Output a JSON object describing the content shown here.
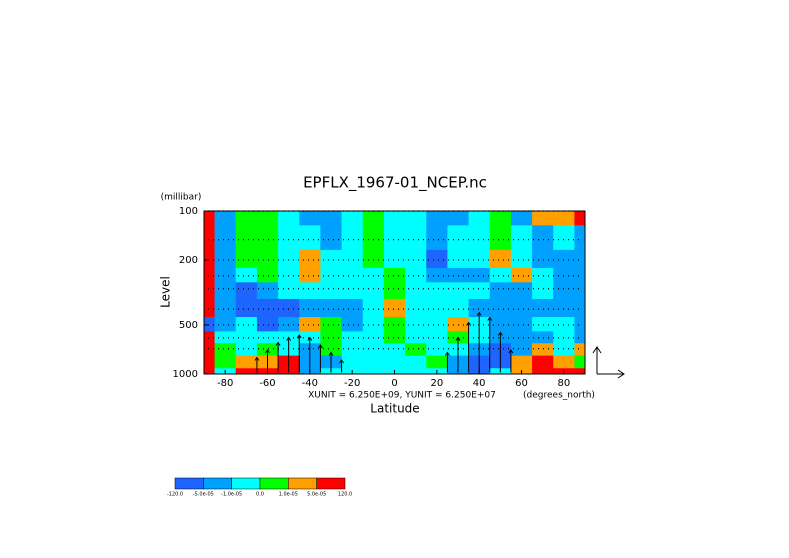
{
  "chart_data": {
    "type": "contour",
    "title": "EPFLX_1967-01_NCEP.nc",
    "xlabel": "Latitude",
    "xunits": "(degrees_north)",
    "ylabel": "Level",
    "yunits": "(millibar)",
    "note": "XUNIT = 6.250E+09, YUNIT = 6.250E+07",
    "xlim": [
      -90,
      90
    ],
    "xticks": [
      -80,
      -60,
      -40,
      -20,
      0,
      20,
      40,
      60,
      80
    ],
    "ylim": [
      1000,
      100
    ],
    "yticks": [
      100,
      200,
      500,
      1000
    ],
    "log_y": true,
    "field": {
      "lat": [
        -90,
        -80,
        -70,
        -60,
        -50,
        -40,
        -30,
        -20,
        -10,
        0,
        10,
        20,
        30,
        40,
        50,
        60,
        70,
        80,
        90
      ],
      "level": [
        100,
        150,
        200,
        250,
        300,
        400,
        500,
        600,
        700,
        850,
        1000
      ],
      "values": [
        [
          6e-05,
          -3e-05,
          5e-06,
          5e-06,
          -5e-06,
          -3e-05,
          -3e-05,
          -5e-06,
          5e-06,
          -5e-06,
          -5e-06,
          -3e-05,
          -3e-05,
          -5e-06,
          5e-06,
          -3e-05,
          3e-05,
          3e-05,
          6e-05
        ],
        [
          6e-05,
          -3e-05,
          5e-06,
          5e-06,
          -5e-06,
          -5e-06,
          -3e-05,
          -5e-06,
          5e-06,
          -5e-06,
          -5e-06,
          -3e-05,
          -5e-06,
          -5e-06,
          5e-06,
          -5e-06,
          -3e-05,
          -5e-06,
          -3e-05
        ],
        [
          6e-05,
          -3e-05,
          5e-06,
          5e-06,
          -5e-06,
          3e-05,
          -5e-06,
          -5e-06,
          5e-06,
          -5e-06,
          -5e-06,
          -6e-05,
          -5e-06,
          -5e-06,
          3e-05,
          -5e-06,
          -3e-05,
          -3e-05,
          -3e-05
        ],
        [
          6e-05,
          -3e-05,
          -5e-06,
          5e-06,
          -5e-06,
          3e-05,
          -5e-06,
          -5e-06,
          -5e-06,
          5e-06,
          -5e-06,
          -3e-05,
          -3e-05,
          -3e-05,
          -5e-06,
          3e-05,
          -5e-06,
          -3e-05,
          -3e-05
        ],
        [
          6e-05,
          -3e-05,
          -6e-05,
          -3e-05,
          -5e-06,
          -5e-06,
          -5e-06,
          -5e-06,
          -5e-06,
          5e-06,
          -5e-06,
          -5e-06,
          -5e-06,
          -5e-06,
          -3e-05,
          -3e-05,
          -5e-06,
          -3e-05,
          -3e-05
        ],
        [
          6e-05,
          -3e-05,
          -6e-05,
          -6e-05,
          -6e-05,
          -3e-05,
          -3e-05,
          -3e-05,
          -5e-06,
          3e-05,
          -5e-06,
          -5e-06,
          -5e-06,
          -3e-05,
          -3e-05,
          -3e-05,
          -3e-05,
          -3e-05,
          -3e-05
        ],
        [
          -6e-05,
          -3e-05,
          -5e-06,
          -6e-05,
          -3e-05,
          3e-05,
          5e-06,
          -3e-05,
          -5e-06,
          5e-06,
          -5e-06,
          -5e-06,
          3e-05,
          -5e-06,
          -3e-05,
          -3e-05,
          -5e-06,
          -5e-06,
          -3e-05
        ],
        [
          6e-05,
          -5e-06,
          -5e-06,
          -5e-06,
          -5e-06,
          -5e-06,
          5e-06,
          -5e-06,
          -5e-06,
          5e-06,
          -5e-06,
          -5e-06,
          5e-06,
          -5e-06,
          -3e-05,
          -3e-05,
          -3e-05,
          -5e-06,
          -3e-05
        ],
        [
          6e-05,
          5e-06,
          -5e-06,
          5e-06,
          -5e-06,
          -3e-05,
          5e-06,
          -5e-06,
          -5e-06,
          -5e-06,
          5e-06,
          -5e-06,
          -5e-06,
          -3e-05,
          -6e-05,
          -3e-05,
          3e-05,
          -5e-06,
          3e-05
        ],
        [
          6e-05,
          5e-06,
          3e-05,
          3e-05,
          6e-05,
          -3e-05,
          -3e-05,
          -5e-06,
          -5e-06,
          -5e-06,
          -5e-06,
          5e-06,
          -3e-05,
          -6e-05,
          -6e-05,
          3e-05,
          6e-05,
          3e-05,
          5e-06
        ],
        [
          6e-05,
          -5e-06,
          6e-05,
          6e-05,
          6e-05,
          -3e-05,
          -5e-06,
          -5e-06,
          -5e-06,
          -5e-06,
          -5e-06,
          -5e-06,
          -3e-05,
          -6e-05,
          -5e-06,
          3e-05,
          6e-05,
          6e-05,
          6e-05
        ]
      ]
    },
    "vectors": {
      "lat": [
        -65,
        -60,
        -55,
        -50,
        -45,
        -40,
        -35,
        -30,
        -25,
        25,
        30,
        35,
        40,
        45,
        50,
        55
      ],
      "level": [
        850,
        850,
        850,
        850,
        850,
        850,
        850,
        850,
        850,
        850,
        850,
        850,
        850,
        850,
        850,
        850
      ],
      "v": [
        0.6,
        0.9,
        1.2,
        1.4,
        1.5,
        1.4,
        1.1,
        0.8,
        0.5,
        0.8,
        1.4,
        2.0,
        2.4,
        2.2,
        1.6,
        0.9
      ]
    },
    "colorbar": {
      "levels": [
        {
          "value": -120,
          "label": "-120.0"
        },
        {
          "value": -5e-05,
          "label": "-5.0e-05"
        },
        {
          "value": -1e-05,
          "label": "-1.0e-05"
        },
        {
          "value": 0,
          "label": "0.0"
        },
        {
          "value": 1e-05,
          "label": "1.0e-05"
        },
        {
          "value": 5e-05,
          "label": "5.0e-05"
        },
        {
          "value": 120,
          "label": "120.0"
        }
      ],
      "colors": [
        "#1e64ff",
        "#00a0ff",
        "#00ffff",
        "#00ff00",
        "#ffa000",
        "#ff0000"
      ]
    }
  }
}
